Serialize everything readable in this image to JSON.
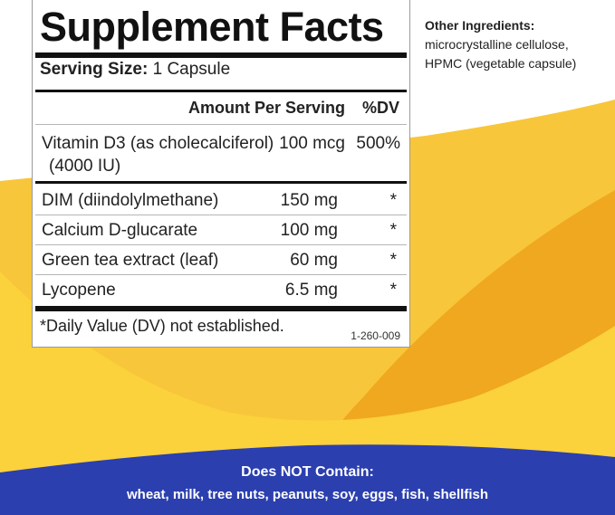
{
  "colors": {
    "light_yellow": "#f8c63a",
    "orange_yellow": "#efa81f",
    "bright_yellow": "#fbd13c",
    "banner_blue": "#2b3fae"
  },
  "facts": {
    "title": "Supplement Facts",
    "serving_label": "Serving Size:",
    "serving_value": "1 Capsule",
    "col_amount": "Amount Per Serving",
    "col_dv": "%DV",
    "rows": [
      {
        "name": "Vitamin D3 (as cholecalciferol)",
        "name2": "(4000 IU)",
        "amount": "100 mcg",
        "dv": "500%"
      },
      {
        "name": "DIM (diindolylmethane)",
        "amount": "150 mg",
        "dv": "*"
      },
      {
        "name": "Calcium D-glucarate",
        "amount": "100 mg",
        "dv": "*"
      },
      {
        "name": "Green tea extract (leaf)",
        "amount": "60 mg",
        "dv": "*"
      },
      {
        "name": "Lycopene",
        "amount": "6.5 mg",
        "dv": "*"
      }
    ],
    "footnote": "*Daily Value (DV) not established.",
    "code": "1-260-009"
  },
  "other_ingredients": {
    "heading": "Other Ingredients:",
    "line1": "microcrystalline cellulose,",
    "line2": "HPMC (vegetable capsule)"
  },
  "banner": {
    "heading": "Does NOT Contain:",
    "list": "wheat, milk, tree nuts, peanuts, soy, eggs, fish, shellfish"
  }
}
